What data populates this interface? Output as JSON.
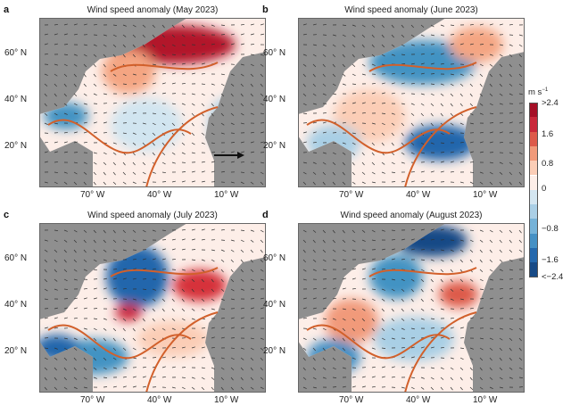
{
  "panels": [
    {
      "letter": "a",
      "title": "Wind speed anomaly (May 2023)"
    },
    {
      "letter": "b",
      "title": "Wind speed anomaly (June 2023)"
    },
    {
      "letter": "c",
      "title": "Wind speed anomaly (July 2023)"
    },
    {
      "letter": "d",
      "title": "Wind speed anomaly (August 2023)"
    }
  ],
  "lat_ticks": [
    "60° N",
    "40° N",
    "20° N"
  ],
  "lon_ticks": [
    "70° W",
    "40° W",
    "10° W"
  ],
  "colorbar": {
    "unit": "m s",
    "unit_exp": "−1",
    "labels": [
      ">2.4",
      "1.6",
      "0.8",
      "0",
      "−0.8",
      "−1.6",
      "<−2.4"
    ],
    "colors": [
      "#a50f26",
      "#c9283a",
      "#dd5a4a",
      "#f19a7a",
      "#fbcdb6",
      "#fdeee8",
      "#d4e6f1",
      "#aacfe6",
      "#75b2d8",
      "#4590c4",
      "#2468ad",
      "#174a86"
    ]
  },
  "land_color": "#8f8f8f",
  "contour_color": "#d2602b"
}
